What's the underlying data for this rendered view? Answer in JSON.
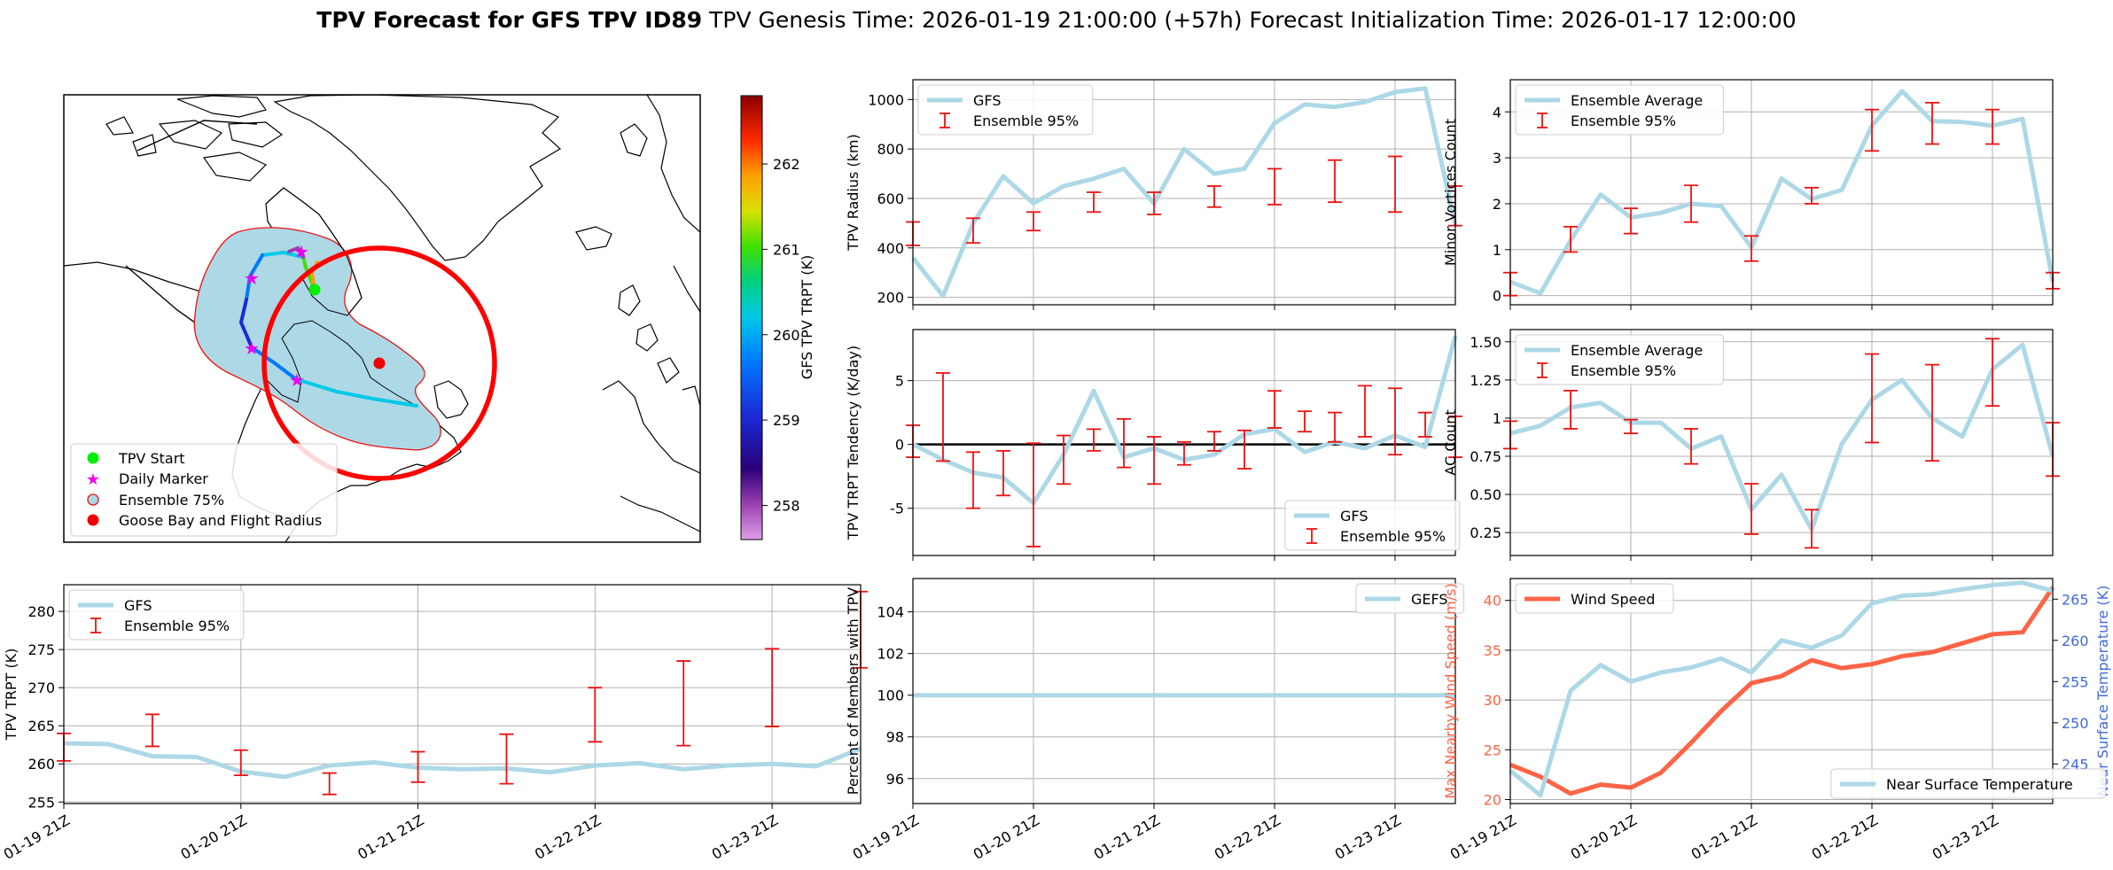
{
  "figure": {
    "title_bold": "TPV Forecast for GFS TPV ID89",
    "title_genesis": "TPV Genesis Time: 2026-01-19 21:00:00 (+57h)",
    "title_init": "Forecast Initialization Time: 2026-01-17 12:00:00"
  },
  "colors": {
    "cyan": "#add8e6",
    "red": "#ff0000",
    "ci": "#ee1111",
    "wind": "#ff6347",
    "temp_axis": "#4169e1",
    "grid": "#b0b0b0"
  },
  "map": {
    "legend": [
      "TPV Start",
      "Daily Marker",
      "Ensemble 75%",
      "Goose Bay and Flight Radius"
    ],
    "colorbar": {
      "label": "GFS TPV TRPT (K)",
      "ticks": [
        258,
        259,
        260,
        261,
        262
      ],
      "range": [
        257.6,
        262.8
      ]
    }
  },
  "x_ticks": [
    "01-19 21Z",
    "01-20 21Z",
    "01-21 21Z",
    "01-22 21Z",
    "01-23 21Z"
  ],
  "chart_data": [
    {
      "id": "trpt",
      "type": "line",
      "title": "",
      "xlabel": "",
      "ylabel": "TPV TRPT (K)",
      "ylim": [
        254.8,
        283.5
      ],
      "yticks": [
        255,
        260,
        265,
        270,
        275,
        280
      ],
      "legend": [
        "GFS",
        "Ensemble 95%"
      ],
      "x": [
        0,
        0.25,
        0.5,
        0.75,
        1,
        1.25,
        1.5,
        1.75,
        2,
        2.25,
        2.5,
        2.75,
        3,
        3.25,
        3.5,
        3.75,
        4,
        4.25,
        4.5
      ],
      "series": [
        {
          "name": "GFS",
          "values": [
            262.7,
            262.6,
            261.0,
            260.9,
            259.0,
            258.3,
            259.8,
            260.2,
            259.5,
            259.3,
            259.4,
            258.9,
            259.8,
            260.1,
            259.3,
            259.8,
            260.0,
            259.7,
            262.0
          ]
        }
      ],
      "errorbars": [
        {
          "x": 0,
          "low": 260.4,
          "high": 264.0
        },
        {
          "x": 0.5,
          "low": 262.3,
          "high": 266.5
        },
        {
          "x": 1,
          "low": 258.5,
          "high": 261.8
        },
        {
          "x": 1.5,
          "low": 256.0,
          "high": 258.8
        },
        {
          "x": 2,
          "low": 257.6,
          "high": 261.6
        },
        {
          "x": 2.5,
          "low": 257.4,
          "high": 263.9
        },
        {
          "x": 3,
          "low": 262.9,
          "high": 270.0
        },
        {
          "x": 3.5,
          "low": 262.4,
          "high": 273.5
        },
        {
          "x": 4,
          "low": 264.9,
          "high": 275.1
        },
        {
          "x": 4.5,
          "low": 272.6,
          "high": 282.6
        }
      ]
    },
    {
      "id": "radius",
      "type": "line",
      "title": "",
      "xlabel": "",
      "ylabel": "TPV Radius (km)",
      "ylim": [
        170,
        1080
      ],
      "yticks": [
        200,
        400,
        600,
        800,
        1000
      ],
      "legend": [
        "GFS",
        "Ensemble 95%"
      ],
      "x": [
        0,
        0.25,
        0.5,
        0.75,
        1,
        1.25,
        1.5,
        1.75,
        2,
        2.25,
        2.5,
        2.75,
        3,
        3.25,
        3.5,
        3.75,
        4,
        4.25,
        4.5
      ],
      "series": [
        {
          "name": "GFS",
          "values": [
            360,
            205,
            500,
            690,
            580,
            650,
            680,
            720,
            580,
            800,
            700,
            720,
            905,
            980,
            970,
            990,
            1030,
            1045,
            490
          ]
        }
      ],
      "errorbars": [
        {
          "x": 0,
          "low": 410,
          "high": 505
        },
        {
          "x": 0.5,
          "low": 420,
          "high": 520
        },
        {
          "x": 1,
          "low": 470,
          "high": 545
        },
        {
          "x": 1.5,
          "low": 545,
          "high": 625
        },
        {
          "x": 2,
          "low": 535,
          "high": 625
        },
        {
          "x": 2.5,
          "low": 565,
          "high": 650
        },
        {
          "x": 3,
          "low": 575,
          "high": 720
        },
        {
          "x": 3.5,
          "low": 585,
          "high": 755
        },
        {
          "x": 4,
          "low": 545,
          "high": 770
        },
        {
          "x": 4.5,
          "low": 490,
          "high": 650
        }
      ]
    },
    {
      "id": "tendency",
      "type": "line",
      "title": "",
      "xlabel": "",
      "ylabel": "TPV TRPT Tendency (K/day)",
      "ylim": [
        -8.7,
        9.0
      ],
      "yticks": [
        -5,
        0,
        5
      ],
      "legend": [
        "GFS",
        "Ensemble 95%"
      ],
      "zero_line": 0,
      "x": [
        0,
        0.25,
        0.5,
        0.75,
        1,
        1.25,
        1.5,
        1.75,
        2,
        2.25,
        2.5,
        2.75,
        3,
        3.25,
        3.5,
        3.75,
        4,
        4.25,
        4.5
      ],
      "series": [
        {
          "name": "GFS",
          "values": [
            0.0,
            -1.2,
            -2.2,
            -2.6,
            -4.6,
            -0.8,
            4.2,
            -1.0,
            -0.3,
            -1.2,
            -0.8,
            0.8,
            1.2,
            -0.6,
            0.2,
            -0.3,
            0.7,
            -0.2,
            8.5
          ]
        }
      ],
      "errorbars": [
        {
          "x": 0,
          "low": -1.0,
          "high": 1.5
        },
        {
          "x": 0.25,
          "low": -1.3,
          "high": 5.6
        },
        {
          "x": 0.5,
          "low": -5.0,
          "high": -0.6
        },
        {
          "x": 0.75,
          "low": -4.0,
          "high": -0.5
        },
        {
          "x": 1,
          "low": -8.0,
          "high": 0.1
        },
        {
          "x": 1.25,
          "low": -3.1,
          "high": 0.7
        },
        {
          "x": 1.5,
          "low": -0.5,
          "high": 1.2
        },
        {
          "x": 1.75,
          "low": -1.8,
          "high": 2.0
        },
        {
          "x": 2,
          "low": -3.1,
          "high": 0.6
        },
        {
          "x": 2.25,
          "low": -1.6,
          "high": 0.2
        },
        {
          "x": 2.5,
          "low": -0.5,
          "high": 1.0
        },
        {
          "x": 2.75,
          "low": -1.9,
          "high": 1.1
        },
        {
          "x": 3,
          "low": 1.3,
          "high": 4.2
        },
        {
          "x": 3.25,
          "low": 1.0,
          "high": 2.6
        },
        {
          "x": 3.5,
          "low": 0.2,
          "high": 2.5
        },
        {
          "x": 3.75,
          "low": 0.6,
          "high": 4.6
        },
        {
          "x": 4,
          "low": -0.8,
          "high": 4.4
        },
        {
          "x": 4.25,
          "low": 0.6,
          "high": 2.5
        },
        {
          "x": 4.5,
          "low": -1.0,
          "high": 2.2
        }
      ]
    },
    {
      "id": "members",
      "type": "line",
      "title": "",
      "xlabel": "",
      "ylabel": "Percent of Members with TPV",
      "ylim": [
        94.8,
        105.6
      ],
      "yticks": [
        96,
        98,
        100,
        102,
        104
      ],
      "legend": [
        "GEFS"
      ],
      "x": [
        0,
        4.5
      ],
      "series": [
        {
          "name": "GEFS",
          "values": [
            100,
            100
          ]
        }
      ]
    },
    {
      "id": "minor",
      "type": "line",
      "title": "",
      "xlabel": "",
      "ylabel": "Minor Vortices Count",
      "ylim": [
        -0.2,
        4.7
      ],
      "yticks": [
        0,
        1,
        2,
        3,
        4
      ],
      "legend": [
        "Ensemble Average",
        "Ensemble 95%"
      ],
      "x": [
        0,
        0.25,
        0.5,
        0.75,
        1,
        1.25,
        1.5,
        1.75,
        2,
        2.25,
        2.5,
        2.75,
        3,
        3.25,
        3.5,
        3.75,
        4,
        4.25,
        4.5
      ],
      "series": [
        {
          "name": "Ensemble Average",
          "values": [
            0.3,
            0.05,
            1.2,
            2.2,
            1.7,
            1.8,
            2.0,
            1.95,
            1.05,
            2.55,
            2.1,
            2.3,
            3.7,
            4.45,
            3.8,
            3.78,
            3.7,
            3.85,
            0.3
          ]
        }
      ],
      "errorbars": [
        {
          "x": 0,
          "low": 0.0,
          "high": 0.5
        },
        {
          "x": 0.5,
          "low": 0.95,
          "high": 1.5
        },
        {
          "x": 1,
          "low": 1.35,
          "high": 1.9
        },
        {
          "x": 1.5,
          "low": 1.6,
          "high": 2.4
        },
        {
          "x": 2,
          "low": 0.75,
          "high": 1.3
        },
        {
          "x": 2.5,
          "low": 2.0,
          "high": 2.35
        },
        {
          "x": 3,
          "low": 3.15,
          "high": 4.05
        },
        {
          "x": 3.5,
          "low": 3.3,
          "high": 4.2
        },
        {
          "x": 4,
          "low": 3.3,
          "high": 4.05
        },
        {
          "x": 4.5,
          "low": 0.15,
          "high": 0.5
        }
      ]
    },
    {
      "id": "ac",
      "type": "line",
      "title": "",
      "xlabel": "",
      "ylabel": "AC Count",
      "ylim": [
        0.1,
        1.58
      ],
      "yticks": [
        0.25,
        0.5,
        0.75,
        1.0,
        1.25,
        1.5
      ],
      "legend": [
        "Ensemble Average",
        "Ensemble 95%"
      ],
      "x": [
        0,
        0.25,
        0.5,
        0.75,
        1,
        1.25,
        1.5,
        1.75,
        2,
        2.25,
        2.5,
        2.75,
        3,
        3.25,
        3.5,
        3.75,
        4,
        4.25,
        4.5
      ],
      "series": [
        {
          "name": "Ensemble Average",
          "values": [
            0.9,
            0.95,
            1.07,
            1.1,
            0.97,
            0.97,
            0.8,
            0.88,
            0.4,
            0.63,
            0.27,
            0.83,
            1.12,
            1.25,
            1.0,
            0.88,
            1.32,
            1.48,
            0.75
          ]
        }
      ],
      "errorbars": [
        {
          "x": 0,
          "low": 0.8,
          "high": 0.98
        },
        {
          "x": 0.5,
          "low": 0.93,
          "high": 1.18
        },
        {
          "x": 1,
          "low": 0.9,
          "high": 0.99
        },
        {
          "x": 1.5,
          "low": 0.7,
          "high": 0.93
        },
        {
          "x": 2,
          "low": 0.24,
          "high": 0.57
        },
        {
          "x": 2.5,
          "low": 0.15,
          "high": 0.4
        },
        {
          "x": 3,
          "low": 0.84,
          "high": 1.42
        },
        {
          "x": 3.5,
          "low": 0.72,
          "high": 1.35
        },
        {
          "x": 4,
          "low": 1.08,
          "high": 1.52
        },
        {
          "x": 4.5,
          "low": 0.62,
          "high": 0.97
        }
      ]
    },
    {
      "id": "wind",
      "type": "line",
      "title": "",
      "xlabel": "",
      "ylabel": "Max Nearby Wind Speed (m/s)",
      "ylabel_right": "Near Surface Temperature (K)",
      "ylim": [
        19.6,
        42.2
      ],
      "yticks": [
        20,
        25,
        30,
        35,
        40
      ],
      "ylim_right": [
        240.2,
        267.5
      ],
      "yticks_right": [
        245,
        250,
        255,
        260,
        265
      ],
      "legend": [
        "Wind Speed",
        "Near Surface Temperature"
      ],
      "x": [
        0,
        0.25,
        0.5,
        0.75,
        1,
        1.25,
        1.5,
        1.75,
        2,
        2.25,
        2.5,
        2.75,
        3,
        3.25,
        3.5,
        3.75,
        4,
        4.25,
        4.5
      ],
      "series": [
        {
          "name": "Wind Speed",
          "axis": "left",
          "values": [
            23.5,
            22.3,
            20.6,
            21.5,
            21.2,
            22.7,
            25.7,
            28.9,
            31.7,
            32.4,
            34.0,
            33.2,
            33.6,
            34.4,
            34.8,
            35.7,
            36.6,
            36.8,
            41.3
          ]
        },
        {
          "name": "Near Surface Temperature",
          "axis": "right",
          "values": [
            244.2,
            241.2,
            253.9,
            257.0,
            255.0,
            256.1,
            256.7,
            257.8,
            256.1,
            260.0,
            259.1,
            260.6,
            264.5,
            265.4,
            265.6,
            266.2,
            266.7,
            267.0,
            266.0
          ]
        }
      ]
    }
  ]
}
